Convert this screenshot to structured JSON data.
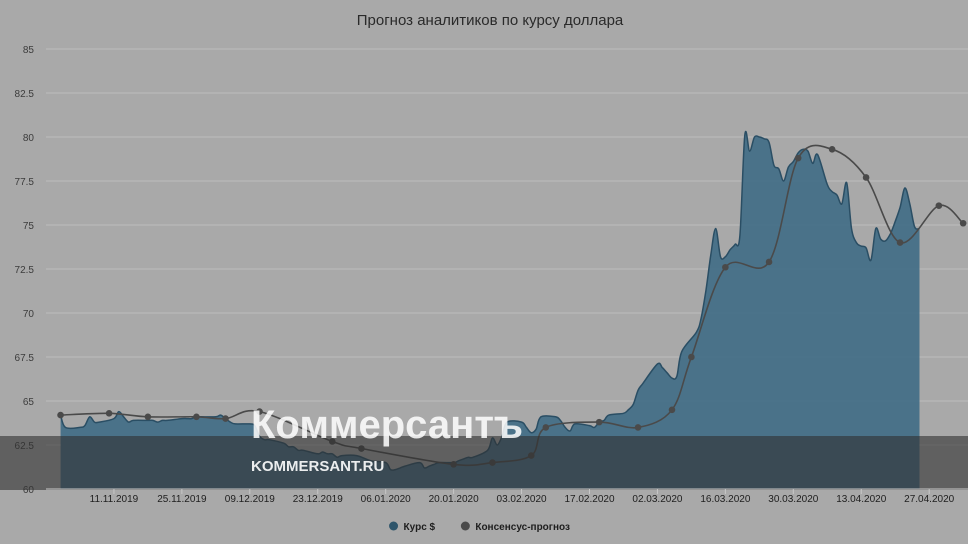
{
  "chart_data": {
    "type": "area",
    "title": "Прогноз аналитиков по курсу доллара",
    "ylim": [
      60,
      85
    ],
    "yticks": [
      60,
      62.5,
      65,
      67.5,
      70,
      72.5,
      75,
      77.5,
      80,
      82.5,
      85
    ],
    "ytick_labels": [
      "60",
      "62.5",
      "65",
      "67.5",
      "70",
      "72.5",
      "75",
      "77.5",
      "80",
      "82.5",
      "85"
    ],
    "x_range": [
      "2019-10-28",
      "2020-05-05"
    ],
    "xticks": [
      "2019-11-11",
      "2019-11-25",
      "2019-12-09",
      "2019-12-23",
      "2020-01-06",
      "2020-01-20",
      "2020-02-03",
      "2020-02-17",
      "2020-03-02",
      "2020-03-16",
      "2020-03-30",
      "2020-04-13",
      "2020-04-27"
    ],
    "xtick_labels": [
      "11.11.2019",
      "25.11.2019",
      "09.12.2019",
      "23.12.2019",
      "06.01.2020",
      "20.01.2020",
      "03.02.2020",
      "17.02.2020",
      "02.03.2020",
      "16.03.2020",
      "30.03.2020",
      "13.04.2020",
      "27.04.2020"
    ],
    "grid": true,
    "legend_position": "bottom-center",
    "series": [
      {
        "name": "Курс $",
        "kind": "area",
        "color": "#3f6b85",
        "points": [
          [
            "2019-10-31",
            64.2
          ],
          [
            "2019-11-01",
            63.5
          ],
          [
            "2019-11-04",
            63.5
          ],
          [
            "2019-11-05",
            63.6
          ],
          [
            "2019-11-06",
            64.1
          ],
          [
            "2019-11-07",
            63.8
          ],
          [
            "2019-11-08",
            63.8
          ],
          [
            "2019-11-11",
            64.0
          ],
          [
            "2019-11-12",
            64.4
          ],
          [
            "2019-11-13",
            64.1
          ],
          [
            "2019-11-14",
            63.8
          ],
          [
            "2019-11-15",
            63.9
          ],
          [
            "2019-11-18",
            63.9
          ],
          [
            "2019-11-19",
            63.9
          ],
          [
            "2019-11-20",
            63.8
          ],
          [
            "2019-11-21",
            63.9
          ],
          [
            "2019-11-22",
            63.9
          ],
          [
            "2019-11-25",
            64.0
          ],
          [
            "2019-11-26",
            64.0
          ],
          [
            "2019-11-27",
            64.0
          ],
          [
            "2019-11-28",
            64.1
          ],
          [
            "2019-11-29",
            64.1
          ],
          [
            "2019-12-02",
            64.1
          ],
          [
            "2019-12-03",
            64.2
          ],
          [
            "2019-12-04",
            64.0
          ],
          [
            "2019-12-05",
            63.8
          ],
          [
            "2019-12-06",
            63.7
          ],
          [
            "2019-12-09",
            63.7
          ],
          [
            "2019-12-10",
            63.6
          ],
          [
            "2019-12-11",
            63.0
          ],
          [
            "2019-12-12",
            62.8
          ],
          [
            "2019-12-13",
            62.8
          ],
          [
            "2019-12-16",
            62.6
          ],
          [
            "2019-12-17",
            62.4
          ],
          [
            "2019-12-18",
            62.4
          ],
          [
            "2019-12-19",
            62.2
          ],
          [
            "2019-12-20",
            62.2
          ],
          [
            "2019-12-23",
            62.0
          ],
          [
            "2019-12-24",
            62.1
          ],
          [
            "2019-12-25",
            62.0
          ],
          [
            "2019-12-26",
            62.0
          ],
          [
            "2019-12-27",
            61.8
          ],
          [
            "2019-12-28",
            61.9
          ],
          [
            "2019-12-31",
            61.9
          ],
          [
            "2020-01-03",
            61.6
          ],
          [
            "2020-01-06",
            61.5
          ],
          [
            "2020-01-07",
            61.1
          ],
          [
            "2020-01-08",
            61.1
          ],
          [
            "2020-01-09",
            61.2
          ],
          [
            "2020-01-10",
            61.3
          ],
          [
            "2020-01-13",
            61.5
          ],
          [
            "2020-01-14",
            61.2
          ],
          [
            "2020-01-15",
            61.3
          ],
          [
            "2020-01-16",
            61.4
          ],
          [
            "2020-01-17",
            61.5
          ],
          [
            "2020-01-20",
            61.5
          ],
          [
            "2020-01-21",
            61.6
          ],
          [
            "2020-01-22",
            61.7
          ],
          [
            "2020-01-23",
            61.8
          ],
          [
            "2020-01-24",
            61.8
          ],
          [
            "2020-01-27",
            62.2
          ],
          [
            "2020-01-28",
            62.9
          ],
          [
            "2020-01-29",
            62.5
          ],
          [
            "2020-01-30",
            63.0
          ],
          [
            "2020-01-31",
            63.8
          ],
          [
            "2020-02-03",
            63.8
          ],
          [
            "2020-02-04",
            63.5
          ],
          [
            "2020-02-05",
            63.2
          ],
          [
            "2020-02-06",
            63.4
          ],
          [
            "2020-02-07",
            64.1
          ],
          [
            "2020-02-10",
            64.1
          ],
          [
            "2020-02-11",
            63.9
          ],
          [
            "2020-02-12",
            63.5
          ],
          [
            "2020-02-13",
            63.3
          ],
          [
            "2020-02-14",
            63.7
          ],
          [
            "2020-02-17",
            63.6
          ],
          [
            "2020-02-18",
            63.5
          ],
          [
            "2020-02-19",
            63.8
          ],
          [
            "2020-02-20",
            63.9
          ],
          [
            "2020-02-21",
            64.2
          ],
          [
            "2020-02-24",
            64.3
          ],
          [
            "2020-02-25",
            64.5
          ],
          [
            "2020-02-26",
            64.8
          ],
          [
            "2020-02-27",
            65.6
          ],
          [
            "2020-02-28",
            66.0
          ],
          [
            "2020-03-02",
            67.1
          ],
          [
            "2020-03-03",
            66.9
          ],
          [
            "2020-03-04",
            66.6
          ],
          [
            "2020-03-05",
            66.3
          ],
          [
            "2020-03-06",
            66.4
          ],
          [
            "2020-03-07",
            67.8
          ],
          [
            "2020-03-10",
            68.9
          ],
          [
            "2020-03-11",
            69.7
          ],
          [
            "2020-03-12",
            71.3
          ],
          [
            "2020-03-13",
            73.3
          ],
          [
            "2020-03-14",
            74.8
          ],
          [
            "2020-03-15",
            73.2
          ],
          [
            "2020-03-16",
            73.2
          ],
          [
            "2020-03-17",
            73.6
          ],
          [
            "2020-03-18",
            73.9
          ],
          [
            "2020-03-19",
            74.4
          ],
          [
            "2020-03-20",
            80.1
          ],
          [
            "2020-03-21",
            79.2
          ],
          [
            "2020-03-22",
            80.0
          ],
          [
            "2020-03-23",
            80.0
          ],
          [
            "2020-03-24",
            79.9
          ],
          [
            "2020-03-25",
            79.7
          ],
          [
            "2020-03-26",
            78.4
          ],
          [
            "2020-03-27",
            78.2
          ],
          [
            "2020-03-28",
            77.5
          ],
          [
            "2020-03-29",
            78.3
          ],
          [
            "2020-03-30",
            78.6
          ],
          [
            "2020-03-31",
            79.1
          ],
          [
            "2020-04-01",
            79.3
          ],
          [
            "2020-04-02",
            79.2
          ],
          [
            "2020-04-03",
            78.5
          ],
          [
            "2020-04-04",
            79.0
          ],
          [
            "2020-04-06",
            77.3
          ],
          [
            "2020-04-07",
            76.9
          ],
          [
            "2020-04-08",
            76.7
          ],
          [
            "2020-04-09",
            76.2
          ],
          [
            "2020-04-10",
            77.4
          ],
          [
            "2020-04-11",
            74.8
          ],
          [
            "2020-04-12",
            74.0
          ],
          [
            "2020-04-13",
            73.8
          ],
          [
            "2020-04-14",
            73.7
          ],
          [
            "2020-04-15",
            73.0
          ],
          [
            "2020-04-16",
            74.8
          ],
          [
            "2020-04-17",
            74.2
          ],
          [
            "2020-04-18",
            74.1
          ],
          [
            "2020-04-19",
            74.5
          ],
          [
            "2020-04-20",
            75.2
          ],
          [
            "2020-04-21",
            76.0
          ],
          [
            "2020-04-22",
            77.1
          ],
          [
            "2020-04-23",
            76.2
          ],
          [
            "2020-04-24",
            74.9
          ],
          [
            "2020-04-25",
            74.8
          ]
        ]
      },
      {
        "name": "Консенсус-прогноз",
        "kind": "line",
        "color": "#4a4a4a",
        "points": [
          [
            "2019-10-31",
            64.2
          ],
          [
            "2019-11-10",
            64.3
          ],
          [
            "2019-11-18",
            64.1
          ],
          [
            "2019-11-28",
            64.1
          ],
          [
            "2019-12-04",
            64.0
          ],
          [
            "2019-12-11",
            64.4
          ],
          [
            "2019-12-26",
            62.7
          ],
          [
            "2020-01-01",
            62.3
          ],
          [
            "2020-01-20",
            61.4
          ],
          [
            "2020-01-28",
            61.5
          ],
          [
            "2020-02-05",
            61.9
          ],
          [
            "2020-02-08",
            63.5
          ],
          [
            "2020-02-19",
            63.8
          ],
          [
            "2020-02-27",
            63.5
          ],
          [
            "2020-03-05",
            64.5
          ],
          [
            "2020-03-09",
            67.5
          ],
          [
            "2020-03-16",
            72.6
          ],
          [
            "2020-03-25",
            72.9
          ],
          [
            "2020-03-31",
            78.8
          ],
          [
            "2020-04-07",
            79.3
          ],
          [
            "2020-04-14",
            77.7
          ],
          [
            "2020-04-21",
            74.0
          ],
          [
            "2020-04-29",
            76.1
          ],
          [
            "2020-05-04",
            75.1
          ]
        ]
      }
    ],
    "legend": [
      {
        "label": "Курс $",
        "color": "#2e556b"
      },
      {
        "label": "Консенсус-прогноз",
        "color": "#4a4a4a"
      }
    ]
  },
  "watermark": {
    "brand": "Коммерсантъ",
    "url": "KOMMERSANT.RU"
  }
}
